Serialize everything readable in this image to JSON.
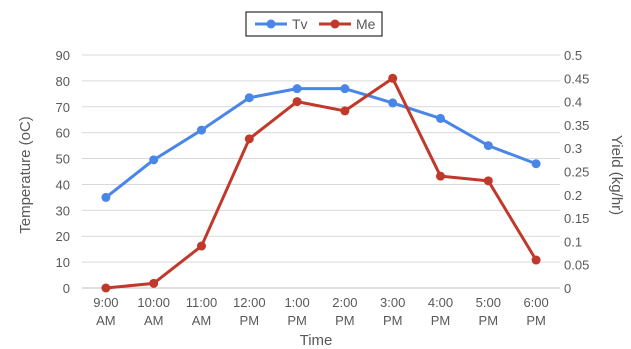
{
  "chart_data": {
    "type": "line",
    "xlabel": "Time",
    "ylabel_left": "Temperature (oC)",
    "ylabel_right": "Yield (kg/hr)",
    "categories": [
      [
        "9:00",
        "AM"
      ],
      [
        "10:00",
        "AM"
      ],
      [
        "11:00",
        "AM"
      ],
      [
        "12:00",
        "PM"
      ],
      [
        "1:00",
        "PM"
      ],
      [
        "2:00",
        "PM"
      ],
      [
        "3:00",
        "PM"
      ],
      [
        "4:00",
        "PM"
      ],
      [
        "5:00",
        "PM"
      ],
      [
        "6:00",
        "PM"
      ]
    ],
    "y_left": {
      "min": 0,
      "max": 90,
      "step": 10,
      "ticks": [
        "0",
        "10",
        "20",
        "30",
        "40",
        "50",
        "60",
        "70",
        "80",
        "90"
      ]
    },
    "y_right": {
      "min": 0,
      "max": 0.5,
      "step": 0.05,
      "ticks": [
        "0",
        "0.05",
        "0.1",
        "0.15",
        "0.2",
        "0.25",
        "0.3",
        "0.35",
        "0.4",
        "0.45",
        "0.5"
      ]
    },
    "grid": true,
    "legend_position": "top-center",
    "series": [
      {
        "name": "Tv",
        "axis": "left",
        "color": "#4a86e8",
        "values": [
          35,
          49.5,
          61,
          73.5,
          77,
          77,
          71.5,
          65.5,
          55,
          48
        ]
      },
      {
        "name": "Me",
        "axis": "right",
        "color": "#c0392b",
        "values": [
          0,
          0.01,
          0.09,
          0.32,
          0.4,
          0.38,
          0.45,
          0.24,
          0.23,
          0.06
        ]
      }
    ]
  }
}
